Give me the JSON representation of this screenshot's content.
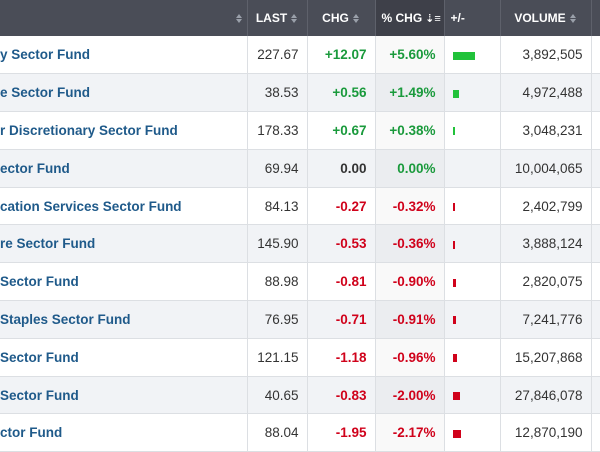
{
  "header": {
    "last": "LAST",
    "chg": "CHG",
    "pct_chg": "% CHG",
    "plus_minus": "+/-",
    "volume": "VOLUME"
  },
  "icons": {
    "sort": "sort-icon",
    "sort_desc": "sort-desc-icon"
  },
  "colors": {
    "header_bg": "#4a4d57",
    "positive": "#1a9a3c",
    "negative": "#d0021b",
    "bar_positive": "#21c23a",
    "name_link": "#1f5a8a"
  },
  "rows": [
    {
      "name": "y Sector Fund",
      "last": "227.67",
      "chg": "+12.07",
      "pct": "+5.60%",
      "dir": "pos",
      "bar": 5.6,
      "volume": "3,892,505"
    },
    {
      "name": "e Sector Fund",
      "last": "38.53",
      "chg": "+0.56",
      "pct": "+1.49%",
      "dir": "pos",
      "bar": 1.49,
      "volume": "4,972,488"
    },
    {
      "name": "r Discretionary Sector Fund",
      "last": "178.33",
      "chg": "+0.67",
      "pct": "+0.38%",
      "dir": "pos",
      "bar": 0.38,
      "volume": "3,048,231"
    },
    {
      "name": "ector Fund",
      "last": "69.94",
      "chg": "0.00",
      "pct": "0.00%",
      "dir": "zero",
      "bar": 0.0,
      "volume": "10,004,065"
    },
    {
      "name": "cation Services Sector Fund",
      "last": "84.13",
      "chg": "-0.27",
      "pct": "-0.32%",
      "dir": "neg",
      "bar": 0.32,
      "volume": "2,402,799"
    },
    {
      "name": "re Sector Fund",
      "last": "145.90",
      "chg": "-0.53",
      "pct": "-0.36%",
      "dir": "neg",
      "bar": 0.36,
      "volume": "3,888,124"
    },
    {
      "name": "Sector Fund",
      "last": "88.98",
      "chg": "-0.81",
      "pct": "-0.90%",
      "dir": "neg",
      "bar": 0.9,
      "volume": "2,820,075"
    },
    {
      "name": "Staples Sector Fund",
      "last": "76.95",
      "chg": "-0.71",
      "pct": "-0.91%",
      "dir": "neg",
      "bar": 0.91,
      "volume": "7,241,776"
    },
    {
      "name": "Sector Fund",
      "last": "121.15",
      "chg": "-1.18",
      "pct": "-0.96%",
      "dir": "neg",
      "bar": 0.96,
      "volume": "15,207,868"
    },
    {
      "name": "Sector Fund",
      "last": "40.65",
      "chg": "-0.83",
      "pct": "-2.00%",
      "dir": "neg",
      "bar": 2.0,
      "volume": "27,846,078"
    },
    {
      "name": "ctor Fund",
      "last": "88.04",
      "chg": "-1.95",
      "pct": "-2.17%",
      "dir": "neg",
      "bar": 2.17,
      "volume": "12,870,190"
    }
  ]
}
